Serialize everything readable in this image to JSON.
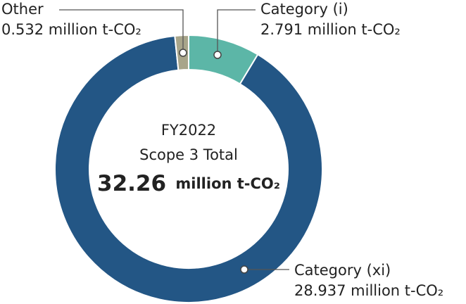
{
  "chart_data": {
    "type": "donut",
    "center_title": "FY2022",
    "center_subtitle": "Scope 3 Total",
    "total": 32.26,
    "total_unit": "million t-CO₂",
    "categories": [
      "Category (i)",
      "Category (xi)",
      "Other"
    ],
    "values": [
      2.791,
      28.937,
      0.532
    ],
    "value_labels": [
      "2.791 million t-CO₂",
      "28.937 million t-CO₂",
      "0.532 million t-CO₂"
    ],
    "colors": [
      "#5cb6a7",
      "#235685",
      "#a8a58a"
    ]
  }
}
